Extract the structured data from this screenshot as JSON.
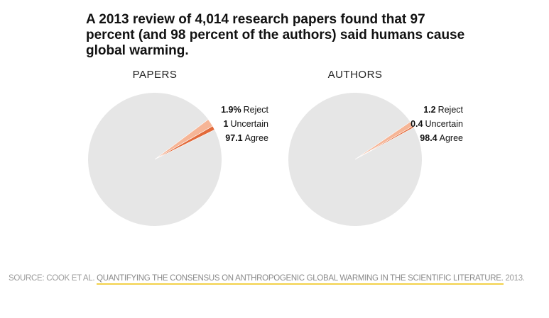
{
  "headline": "A 2013 review of 4,014 research papers found that 97 percent (and 98 percent of the authors) said humans cause global warming.",
  "colors": {
    "agree": "#e6e6e6",
    "reject": "#f6b596",
    "uncertain": "#e26a3a",
    "text": "#111111",
    "source_text": "#9a9a9a",
    "link_underline": "#f2d14a"
  },
  "chart_data": [
    {
      "type": "pie",
      "title": "PAPERS",
      "slices": [
        {
          "label": "Reject",
          "value": 1.9,
          "display": "1.9%",
          "color": "#f6b596"
        },
        {
          "label": "Uncertain",
          "value": 1,
          "display": "1",
          "color": "#e26a3a"
        },
        {
          "label": "Agree",
          "value": 97.1,
          "display": "97.1",
          "color": "#e6e6e6"
        }
      ]
    },
    {
      "type": "pie",
      "title": "AUTHORS",
      "slices": [
        {
          "label": "Reject",
          "value": 1.2,
          "display": "1.2",
          "color": "#f6b596"
        },
        {
          "label": "Uncertain",
          "value": 0.4,
          "display": "0.4",
          "color": "#e26a3a"
        },
        {
          "label": "Agree",
          "value": 98.4,
          "display": "98.4",
          "color": "#e6e6e6"
        }
      ]
    }
  ],
  "source": {
    "prefix": "SOURCE: COOK ET AL. ",
    "link_text": "QUANTIFYING THE CONSENSUS ON ANTHROPOGENIC GLOBAL WARMING IN THE SCIENTIFIC LITERATURE.",
    "suffix": " 2013."
  }
}
